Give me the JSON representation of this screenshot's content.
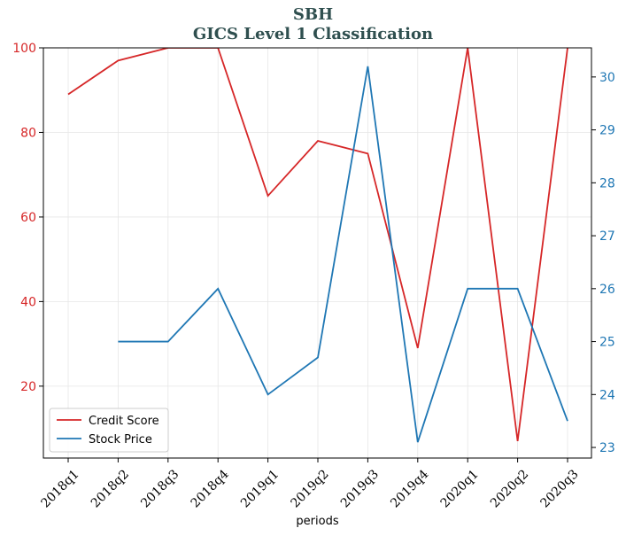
{
  "title": {
    "line1": "SBH",
    "line2": "GICS Level 1 Classification"
  },
  "chart_data": {
    "type": "line",
    "categories": [
      "2018q1",
      "2018q2",
      "2018q3",
      "2018q4",
      "2019q1",
      "2019q2",
      "2019q3",
      "2019q4",
      "2020q1",
      "2020q2",
      "2020q3"
    ],
    "xlabel": "periods",
    "grid": true,
    "legend_placement": "lower-left",
    "series": [
      {
        "name": "Credit Score",
        "axis": "left",
        "color": "#d62728",
        "values": [
          89,
          97,
          100,
          100,
          65,
          78,
          75,
          29,
          100,
          7,
          100
        ]
      },
      {
        "name": "Stock Price",
        "axis": "right",
        "color": "#1f77b4",
        "values": [
          null,
          25.0,
          25.0,
          26.0,
          24.0,
          24.7,
          30.2,
          23.1,
          26.0,
          26.0,
          23.5
        ]
      }
    ],
    "left_axis": {
      "ylim": [
        3,
        100
      ],
      "ticks": [
        20,
        40,
        60,
        80,
        100
      ],
      "color": "#d62728"
    },
    "right_axis": {
      "ylim": [
        22.8,
        30.55
      ],
      "ticks": [
        23,
        24,
        25,
        26,
        27,
        28,
        29,
        30
      ],
      "color": "#1f77b4"
    }
  }
}
